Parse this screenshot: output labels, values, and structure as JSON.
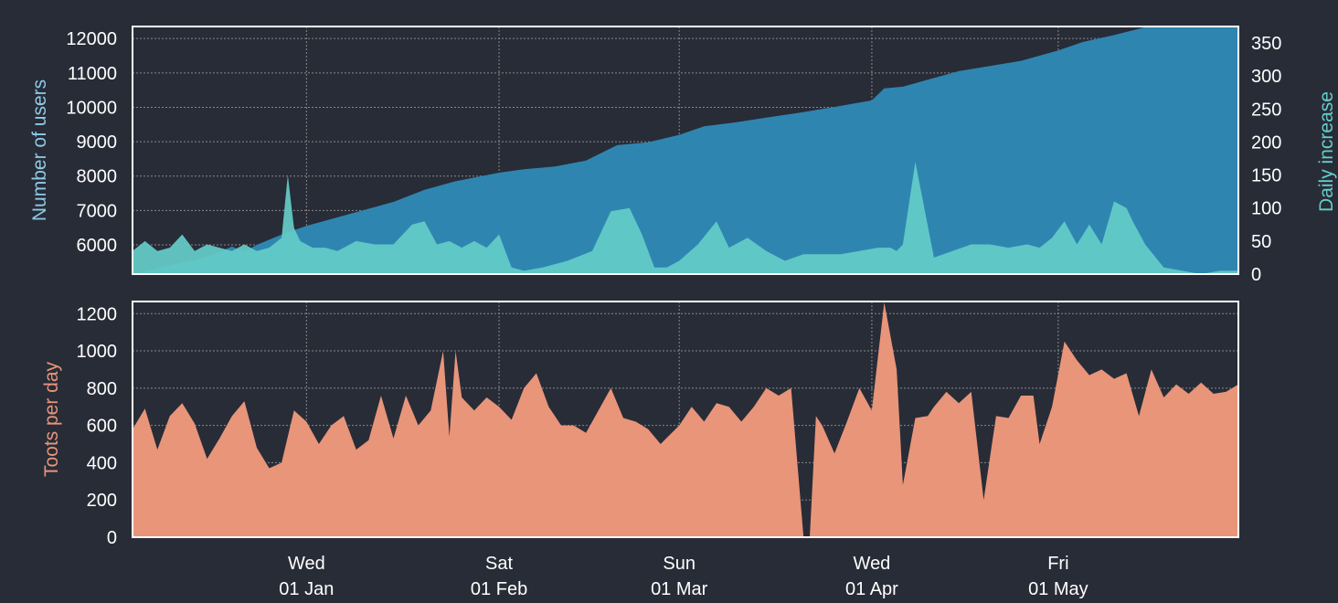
{
  "colors": {
    "background": "#282c37",
    "users_area": "#2e86b0",
    "daily_area": "#65cdc9",
    "toots_area": "#e8957a",
    "users_label": "#8ecae6",
    "daily_label": "#65cdc9",
    "toots_label": "#e8957a",
    "frame": "#ffffff",
    "grid": "#888888",
    "tick": "#ffffff"
  },
  "x_ticks": [
    {
      "date": "2020-01-01",
      "weekday": "Wed",
      "label": "01 Jan"
    },
    {
      "date": "2020-02-01",
      "weekday": "Sat",
      "label": "01 Feb"
    },
    {
      "date": "2020-03-01",
      "weekday": "Sun",
      "label": "01 Mar"
    },
    {
      "date": "2020-04-01",
      "weekday": "Wed",
      "label": "01 Apr"
    },
    {
      "date": "2020-05-01",
      "weekday": "Fri",
      "label": "01 May"
    }
  ],
  "chart_data": [
    {
      "type": "area",
      "grid": true,
      "xlim": [
        "2019-12-04",
        "2020-05-30"
      ],
      "ylabel": "Number of users",
      "ylim": [
        5150,
        12350
      ],
      "yticks": [
        6000,
        7000,
        8000,
        9000,
        10000,
        11000,
        12000
      ],
      "y2label": "Daily increase",
      "y2lim": [
        0,
        375
      ],
      "y2ticks": [
        0,
        50,
        100,
        150,
        200,
        250,
        300,
        350
      ],
      "series": [
        {
          "axis": "left",
          "x": [
            "2019-12-04",
            "2019-12-10",
            "2019-12-16",
            "2019-12-20",
            "2019-12-22",
            "2019-12-24",
            "2019-12-28",
            "2020-01-01",
            "2020-01-05",
            "2020-01-10",
            "2020-01-15",
            "2020-01-20",
            "2020-01-25",
            "2020-02-01",
            "2020-02-05",
            "2020-02-10",
            "2020-02-15",
            "2020-02-20",
            "2020-02-25",
            "2020-03-01",
            "2020-03-05",
            "2020-03-10",
            "2020-03-15",
            "2020-03-20",
            "2020-03-25",
            "2020-04-01",
            "2020-04-03",
            "2020-04-06",
            "2020-04-10",
            "2020-04-15",
            "2020-04-20",
            "2020-04-25",
            "2020-05-01",
            "2020-05-05",
            "2020-05-10",
            "2020-05-15",
            "2020-05-17",
            "2020-05-30"
          ],
          "values": [
            5150,
            5400,
            5650,
            5950,
            5800,
            6000,
            6300,
            6550,
            6750,
            7000,
            7250,
            7600,
            7850,
            8100,
            8200,
            8280,
            8450,
            8900,
            8980,
            9200,
            9450,
            9560,
            9700,
            9830,
            9980,
            10200,
            10550,
            10600,
            10800,
            11050,
            11200,
            11350,
            11650,
            11900,
            12100,
            12330,
            12330,
            12330
          ]
        },
        {
          "axis": "right",
          "x": [
            "2019-12-04",
            "2019-12-06",
            "2019-12-08",
            "2019-12-10",
            "2019-12-12",
            "2019-12-14",
            "2019-12-16",
            "2019-12-18",
            "2019-12-20",
            "2019-12-22",
            "2019-12-24",
            "2019-12-26",
            "2019-12-28",
            "2019-12-29",
            "2019-12-30",
            "2019-12-31",
            "2020-01-02",
            "2020-01-04",
            "2020-01-06",
            "2020-01-09",
            "2020-01-12",
            "2020-01-15",
            "2020-01-18",
            "2020-01-20",
            "2020-01-22",
            "2020-01-24",
            "2020-01-26",
            "2020-01-28",
            "2020-01-30",
            "2020-02-01",
            "2020-02-03",
            "2020-02-05",
            "2020-02-08",
            "2020-02-12",
            "2020-02-16",
            "2020-02-19",
            "2020-02-22",
            "2020-02-24",
            "2020-02-26",
            "2020-02-28",
            "2020-03-01",
            "2020-03-04",
            "2020-03-07",
            "2020-03-09",
            "2020-03-12",
            "2020-03-15",
            "2020-03-18",
            "2020-03-21",
            "2020-03-24",
            "2020-03-27",
            "2020-03-30",
            "2020-04-02",
            "2020-04-04",
            "2020-04-05",
            "2020-04-06",
            "2020-04-08",
            "2020-04-11",
            "2020-04-14",
            "2020-04-17",
            "2020-04-20",
            "2020-04-23",
            "2020-04-26",
            "2020-04-28",
            "2020-04-30",
            "2020-05-02",
            "2020-05-04",
            "2020-05-06",
            "2020-05-08",
            "2020-05-10",
            "2020-05-12",
            "2020-05-13",
            "2020-05-15",
            "2020-05-18",
            "2020-05-21",
            "2020-05-24",
            "2020-05-27",
            "2020-05-30"
          ],
          "values": [
            35,
            50,
            35,
            40,
            60,
            35,
            45,
            40,
            35,
            45,
            35,
            40,
            55,
            150,
            70,
            50,
            40,
            40,
            35,
            50,
            45,
            45,
            75,
            80,
            45,
            50,
            40,
            50,
            40,
            60,
            10,
            5,
            10,
            20,
            35,
            95,
            100,
            60,
            10,
            10,
            20,
            45,
            80,
            40,
            55,
            35,
            20,
            30,
            30,
            30,
            35,
            40,
            40,
            35,
            45,
            170,
            25,
            35,
            45,
            45,
            40,
            45,
            40,
            55,
            80,
            45,
            75,
            45,
            110,
            100,
            80,
            45,
            10,
            5,
            0,
            5,
            5
          ]
        }
      ]
    },
    {
      "type": "area",
      "grid": true,
      "xlim": [
        "2019-12-04",
        "2020-05-30"
      ],
      "ylabel": "Toots per day",
      "ylim": [
        0,
        1265
      ],
      "yticks": [
        0,
        200,
        400,
        600,
        800,
        1000,
        1200
      ],
      "series": [
        {
          "axis": "left",
          "x": [
            "2019-12-04",
            "2019-12-06",
            "2019-12-08",
            "2019-12-10",
            "2019-12-12",
            "2019-12-14",
            "2019-12-16",
            "2019-12-18",
            "2019-12-20",
            "2019-12-22",
            "2019-12-24",
            "2019-12-26",
            "2019-12-28",
            "2019-12-30",
            "2020-01-01",
            "2020-01-03",
            "2020-01-05",
            "2020-01-07",
            "2020-01-09",
            "2020-01-11",
            "2020-01-13",
            "2020-01-15",
            "2020-01-17",
            "2020-01-19",
            "2020-01-21",
            "2020-01-23",
            "2020-01-24",
            "2020-01-25",
            "2020-01-26",
            "2020-01-28",
            "2020-01-30",
            "2020-02-01",
            "2020-02-03",
            "2020-02-05",
            "2020-02-07",
            "2020-02-09",
            "2020-02-11",
            "2020-02-13",
            "2020-02-15",
            "2020-02-17",
            "2020-02-19",
            "2020-02-21",
            "2020-02-23",
            "2020-02-25",
            "2020-02-27",
            "2020-03-01",
            "2020-03-03",
            "2020-03-05",
            "2020-03-07",
            "2020-03-09",
            "2020-03-11",
            "2020-03-13",
            "2020-03-15",
            "2020-03-17",
            "2020-03-19",
            "2020-03-21",
            "2020-03-22",
            "2020-03-23",
            "2020-03-24",
            "2020-03-26",
            "2020-03-28",
            "2020-03-30",
            "2020-04-01",
            "2020-04-03",
            "2020-04-05",
            "2020-04-06",
            "2020-04-08",
            "2020-04-10",
            "2020-04-11",
            "2020-04-13",
            "2020-04-15",
            "2020-04-17",
            "2020-04-19",
            "2020-04-21",
            "2020-04-23",
            "2020-04-25",
            "2020-04-27",
            "2020-04-28",
            "2020-04-30",
            "2020-05-02",
            "2020-05-04",
            "2020-05-06",
            "2020-05-08",
            "2020-05-10",
            "2020-05-12",
            "2020-05-14",
            "2020-05-16",
            "2020-05-18",
            "2020-05-20",
            "2020-05-22",
            "2020-05-24",
            "2020-05-26",
            "2020-05-28",
            "2020-05-30"
          ],
          "values": [
            580,
            690,
            470,
            650,
            720,
            610,
            420,
            530,
            650,
            730,
            480,
            370,
            400,
            680,
            620,
            500,
            600,
            650,
            470,
            520,
            760,
            530,
            760,
            600,
            680,
            1000,
            540,
            1000,
            750,
            680,
            750,
            700,
            630,
            800,
            880,
            700,
            600,
            600,
            560,
            680,
            800,
            640,
            620,
            580,
            500,
            600,
            700,
            620,
            720,
            700,
            620,
            700,
            800,
            760,
            800,
            0,
            0,
            650,
            600,
            450,
            620,
            800,
            680,
            1260,
            900,
            280,
            640,
            650,
            700,
            780,
            720,
            780,
            200,
            650,
            640,
            760,
            760,
            500,
            700,
            1050,
            950,
            870,
            900,
            850,
            880,
            650,
            900,
            750,
            820,
            770,
            830,
            770,
            780,
            820
          ]
        }
      ]
    }
  ]
}
